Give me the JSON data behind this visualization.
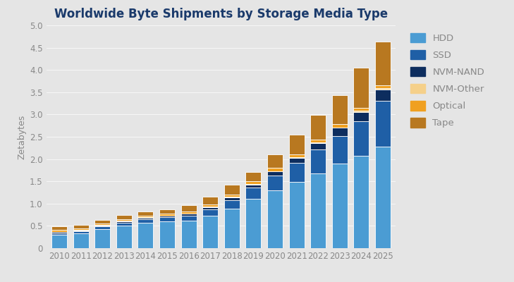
{
  "title": "Worldwide Byte Shipments by Storage Media Type",
  "ylabel": "Zetabytes",
  "years": [
    2010,
    2011,
    2012,
    2013,
    2014,
    2015,
    2016,
    2017,
    2018,
    2019,
    2020,
    2021,
    2022,
    2023,
    2024,
    2025
  ],
  "series": {
    "HDD": [
      0.3,
      0.33,
      0.43,
      0.5,
      0.57,
      0.6,
      0.62,
      0.73,
      0.88,
      1.1,
      1.3,
      1.48,
      1.68,
      1.9,
      2.08,
      2.28
    ],
    "SSD": [
      0.04,
      0.05,
      0.06,
      0.07,
      0.08,
      0.09,
      0.11,
      0.14,
      0.2,
      0.26,
      0.33,
      0.43,
      0.53,
      0.62,
      0.77,
      1.02
    ],
    "NVM-NAND": [
      0.02,
      0.02,
      0.02,
      0.03,
      0.03,
      0.03,
      0.04,
      0.05,
      0.06,
      0.07,
      0.09,
      0.12,
      0.15,
      0.18,
      0.21,
      0.26
    ],
    "NVM-Other": [
      0.01,
      0.01,
      0.01,
      0.01,
      0.01,
      0.01,
      0.01,
      0.01,
      0.01,
      0.01,
      0.01,
      0.01,
      0.01,
      0.01,
      0.02,
      0.03
    ],
    "Optical": [
      0.04,
      0.04,
      0.04,
      0.04,
      0.04,
      0.04,
      0.05,
      0.05,
      0.06,
      0.07,
      0.07,
      0.07,
      0.07,
      0.07,
      0.07,
      0.07
    ],
    "Tape": [
      0.08,
      0.08,
      0.08,
      0.09,
      0.1,
      0.1,
      0.14,
      0.18,
      0.22,
      0.2,
      0.3,
      0.43,
      0.55,
      0.65,
      0.9,
      0.98
    ]
  },
  "colors": {
    "HDD": "#4B9CD3",
    "SSD": "#1F5FA6",
    "NVM-NAND": "#0D2D5E",
    "NVM-Other": "#F5D08A",
    "Optical": "#F0A020",
    "Tape": "#B87820"
  },
  "legend_labels": [
    "HDD",
    "SSD",
    "NVM-NAND",
    "NVM-Other",
    "Optical",
    "Tape"
  ],
  "ylim": [
    0,
    5.0
  ],
  "yticks": [
    0.0,
    0.5,
    1.0,
    1.5,
    2.0,
    2.5,
    3.0,
    3.5,
    4.0,
    4.5,
    5.0
  ],
  "ytick_labels": [
    "0",
    "0.5",
    "1.0",
    "1.5",
    "2.0",
    "2.5",
    "3.0",
    "3.5",
    "4.0",
    "4.5",
    "5.0"
  ],
  "background_color": "#E5E5E5",
  "plot_bg_color": "#E5E5E5",
  "title_color": "#1A3A6B",
  "axis_label_color": "#888888",
  "tick_color": "#888888",
  "bar_width": 0.72,
  "title_fontsize": 12,
  "axis_label_fontsize": 9,
  "tick_fontsize": 8.5,
  "legend_fontsize": 9.5
}
